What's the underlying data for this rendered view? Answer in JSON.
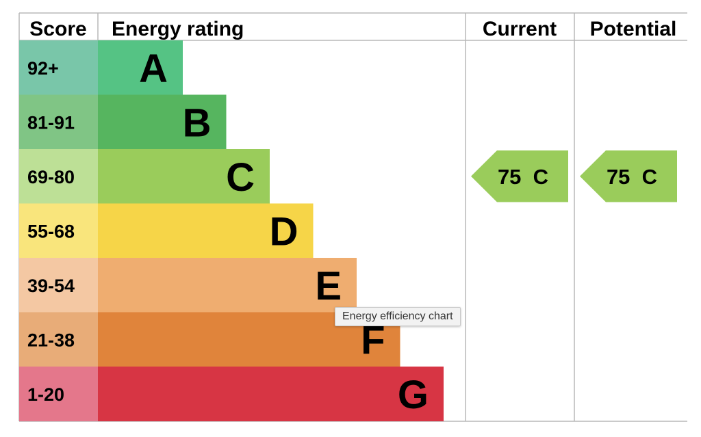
{
  "chart_data": {
    "type": "bar",
    "headers": {
      "score": "Score",
      "rating": "Energy rating",
      "current": "Current",
      "potential": "Potential"
    },
    "bands": [
      {
        "score": "92+",
        "letter": "A",
        "color": "#55c384",
        "score_color": "#79c6a9"
      },
      {
        "score": "81-91",
        "letter": "B",
        "color": "#56b55f",
        "score_color": "#80c585"
      },
      {
        "score": "69-80",
        "letter": "C",
        "color": "#9acc5b",
        "score_color": "#bde096"
      },
      {
        "score": "55-68",
        "letter": "D",
        "color": "#f6d548",
        "score_color": "#f9e57c"
      },
      {
        "score": "39-54",
        "letter": "E",
        "color": "#efad70",
        "score_color": "#f4c8a3"
      },
      {
        "score": "21-38",
        "letter": "F",
        "color": "#e0843b",
        "score_color": "#e8ac78"
      },
      {
        "score": "1-20",
        "letter": "G",
        "color": "#d73544",
        "score_color": "#e4778b"
      }
    ],
    "current": {
      "value": 75,
      "band": "C",
      "label": "75  C",
      "color": "#9acc5b"
    },
    "potential": {
      "value": 75,
      "band": "C",
      "label": "75  C",
      "color": "#9acc5b"
    }
  },
  "tooltip": "Energy efficiency chart"
}
